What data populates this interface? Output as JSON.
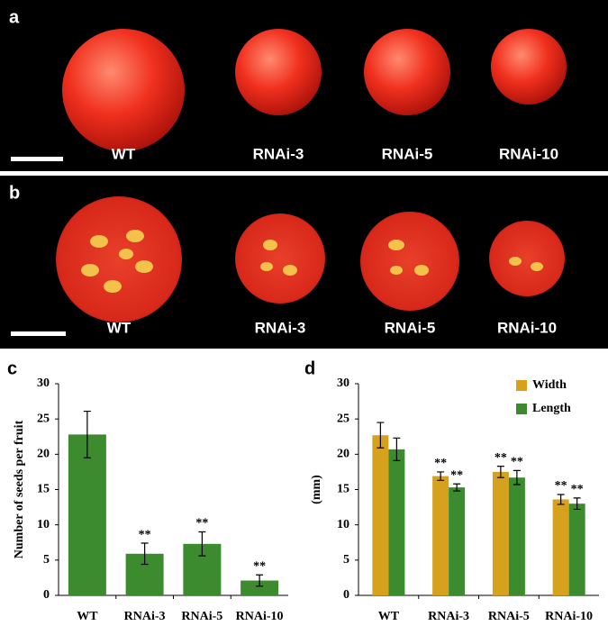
{
  "panels": {
    "a": {
      "letter": "a",
      "labels": [
        "WT",
        "RNAi-3",
        "RNAi-5",
        "RNAi-10"
      ]
    },
    "b": {
      "letter": "b",
      "labels": [
        "WT",
        "RNAi-3",
        "RNAi-5",
        "RNAi-10"
      ]
    }
  },
  "chart_data": [
    {
      "type": "bar",
      "letter": "c",
      "ylabel": "Number of seeds per fruit",
      "categories": [
        "WT",
        "RNAi-3",
        "RNAi-5",
        "RNAi-10"
      ],
      "values": [
        22.8,
        5.9,
        7.3,
        2.1
      ],
      "error": [
        3.3,
        1.5,
        1.7,
        0.8
      ],
      "significance": [
        null,
        "**",
        "**",
        "**"
      ],
      "color": "#3d8b2f",
      "ylim": [
        0,
        30
      ],
      "yticks": [
        0,
        5,
        10,
        15,
        20,
        25,
        30
      ]
    },
    {
      "type": "bar",
      "letter": "d",
      "ylabel": "(mm)",
      "categories": [
        "WT",
        "RNAi-3",
        "RNAi-5",
        "RNAi-10"
      ],
      "series": [
        {
          "name": "Width",
          "color": "#d6a11c",
          "values": [
            22.7,
            16.9,
            17.5,
            13.6
          ],
          "error": [
            1.8,
            0.6,
            0.8,
            0.7
          ],
          "significance": [
            null,
            "**",
            "**",
            "**"
          ]
        },
        {
          "name": "Length",
          "color": "#3d8b2f",
          "values": [
            20.7,
            15.3,
            16.7,
            13.0
          ],
          "error": [
            1.6,
            0.5,
            1.0,
            0.8
          ],
          "significance": [
            null,
            "**",
            "**",
            "**"
          ]
        }
      ],
      "legend": "upper right",
      "ylim": [
        0,
        30
      ],
      "yticks": [
        0,
        5,
        10,
        15,
        20,
        25,
        30
      ]
    }
  ]
}
